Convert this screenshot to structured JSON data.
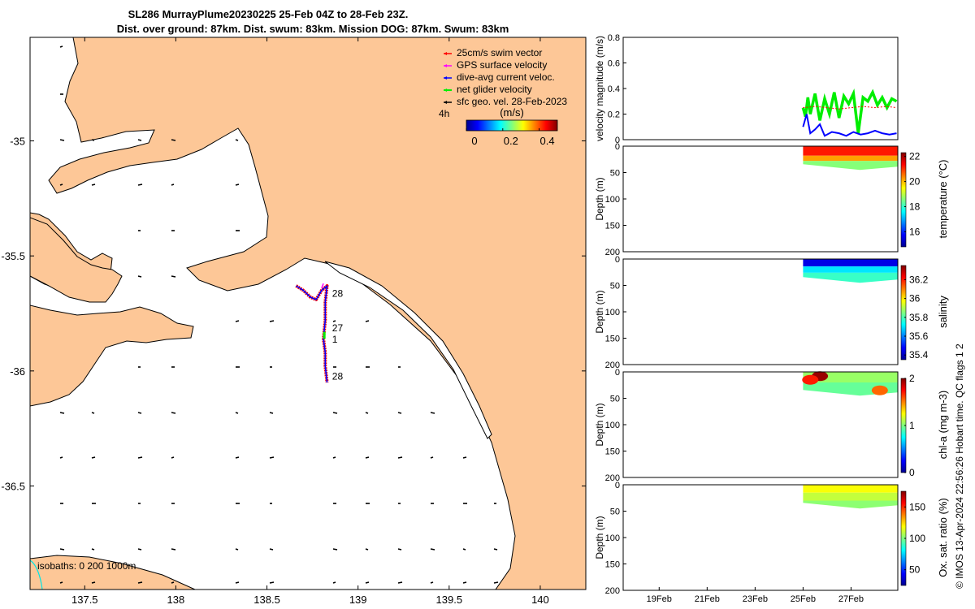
{
  "header": {
    "title_line1": "SL286 MurrayPlume20230225 25-Feb 04Z to 28-Feb 23Z.",
    "title_line2": "Dist. over ground: 87km. Dist. swum: 83km. Mission DOG: 87km. Swum: 83km"
  },
  "credit": "© IMOS 13-Apr-2024 22:56:26 Hobart time. QC flags 1  2",
  "colors": {
    "land": "#fdc797",
    "swim_vector": "#ff0000",
    "gps_surface": "#ff00ff",
    "dive_avg_current": "#0000ff",
    "net_glider": "#00ee00",
    "sfc_geo": "#000000",
    "isobath": "#00e5e5"
  },
  "chart_data": [
    {
      "id": "map",
      "type": "scatter",
      "title": "",
      "xlabel": "",
      "ylabel": "",
      "xlim": [
        137.2,
        140.25
      ],
      "ylim": [
        -36.95,
        -34.55
      ],
      "x_ticks": [
        137.5,
        138,
        138.5,
        139,
        139.5,
        140
      ],
      "x_tick_labels": [
        "137.5",
        "138",
        "138.5",
        "139",
        "139.5",
        "140"
      ],
      "y_ticks": [
        -35,
        -35.5,
        -36,
        -36.5
      ],
      "y_tick_labels": [
        "-35",
        "-35.5",
        "-36",
        "-36.5"
      ],
      "legend": {
        "position": "top-right",
        "entries": [
          {
            "label": "25cm/s swim vector",
            "color_key": "swim_vector"
          },
          {
            "label": "GPS surface velocity",
            "color_key": "gps_surface"
          },
          {
            "label": "dive-avg current veloc.",
            "color_key": "dive_avg_current"
          },
          {
            "label": "net glider velocity",
            "color_key": "net_glider"
          },
          {
            "label": "sfc geo. vel. 28-Feb-2023",
            "color_key": "sfc_geo"
          }
        ]
      },
      "colorbar": {
        "label": "(m/s)",
        "ticks": [
          0,
          0.2,
          0.4
        ],
        "tick_labels": [
          "0",
          "0.2",
          "0.4"
        ],
        "range": [
          0,
          0.5
        ],
        "side_label": "4h"
      },
      "isobaths_label": "isobaths: 0   200  1000m",
      "day_labels": [
        {
          "text": "28",
          "lon": 138.84,
          "lat": -35.66
        },
        {
          "text": "27",
          "lon": 138.84,
          "lat": -35.81
        },
        {
          "text": "1",
          "lon": 138.84,
          "lat": -35.86
        },
        {
          "text": "28",
          "lon": 138.84,
          "lat": -36.02
        }
      ],
      "track": [
        [
          138.66,
          -35.63
        ],
        [
          138.7,
          -35.65
        ],
        [
          138.74,
          -35.68
        ],
        [
          138.77,
          -35.69
        ],
        [
          138.8,
          -35.65
        ],
        [
          138.83,
          -35.63
        ],
        [
          138.82,
          -35.7
        ],
        [
          138.82,
          -35.78
        ],
        [
          138.81,
          -35.86
        ],
        [
          138.82,
          -35.92
        ],
        [
          138.82,
          -35.98
        ],
        [
          138.83,
          -36.05
        ]
      ],
      "sfc_vector_grid": {
        "lon_start": 137.3,
        "lon_step": 0.4,
        "lat_start": -34.6,
        "lat_step": -0.25
      }
    },
    {
      "id": "velocity",
      "type": "line",
      "ylabel": "velocity magnitude (m/s)",
      "ylim": [
        0,
        0.8
      ],
      "y_ticks": [
        0,
        0.2,
        0.4,
        0.6,
        0.8
      ],
      "y_tick_labels": [
        "0",
        "0.2",
        "0.4",
        "0.6",
        "0.8"
      ],
      "xlim": [
        17.5,
        28.95
      ],
      "series": [
        {
          "name": "net glider velocity",
          "color_key": "net_glider",
          "x": [
            25.0,
            25.1,
            25.2,
            25.3,
            25.5,
            25.7,
            25.9,
            26.1,
            26.3,
            26.5,
            26.7,
            26.9,
            27.1,
            27.3,
            27.5,
            27.7,
            27.9,
            28.1,
            28.3,
            28.5,
            28.7,
            28.9
          ],
          "values": [
            0.25,
            0.18,
            0.33,
            0.2,
            0.36,
            0.15,
            0.32,
            0.2,
            0.37,
            0.17,
            0.34,
            0.28,
            0.36,
            0.05,
            0.33,
            0.3,
            0.37,
            0.27,
            0.33,
            0.25,
            0.32,
            0.3
          ]
        },
        {
          "name": "dive-avg current veloc.",
          "color_key": "dive_avg_current",
          "x": [
            25.0,
            25.15,
            25.3,
            25.5,
            25.7,
            25.9,
            26.2,
            26.5,
            26.8,
            27.1,
            27.4,
            27.7,
            28.0,
            28.3,
            28.6,
            28.9
          ],
          "values": [
            0.1,
            0.2,
            0.05,
            0.08,
            0.12,
            0.03,
            0.06,
            0.05,
            0.03,
            0.06,
            0.04,
            0.05,
            0.07,
            0.05,
            0.04,
            0.05
          ]
        },
        {
          "name": "25cm/s swim vector",
          "color_key": "swim_vector",
          "x": [
            25.0,
            25.5,
            26.0,
            26.5,
            27.0,
            27.5,
            28.0,
            28.5,
            28.9
          ],
          "values": [
            0.25,
            0.26,
            0.25,
            0.24,
            0.25,
            0.26,
            0.25,
            0.26,
            0.25
          ]
        }
      ]
    },
    {
      "id": "temperature",
      "type": "heatmap",
      "ylabel": "Depth (m)",
      "ylim": [
        200,
        0
      ],
      "colorbar_label": "temperature (°C)",
      "colorbar_range": [
        14.8,
        22.3
      ],
      "colorbar_ticks": [
        16,
        18,
        20,
        22
      ],
      "colorbar_tick_labels": [
        "16",
        "18",
        "20",
        "22"
      ],
      "x_range": [
        25.0,
        28.95
      ],
      "depth_range": [
        0,
        45
      ],
      "layers": [
        {
          "depth_max": 18,
          "value": 21.2
        },
        {
          "depth_max": 28,
          "value": 20.2
        },
        {
          "depth_max": 45,
          "value": 18.6
        }
      ]
    },
    {
      "id": "salinity",
      "type": "heatmap",
      "ylabel": "Depth (m)",
      "ylim": [
        200,
        0
      ],
      "colorbar_label": "salinity",
      "colorbar_range": [
        35.35,
        36.35
      ],
      "colorbar_ticks": [
        35.4,
        35.6,
        35.8,
        36,
        36.2
      ],
      "colorbar_tick_labels": [
        "35.4",
        "35.6",
        "35.8",
        "36",
        "36.2"
      ],
      "x_range": [
        25.0,
        28.95
      ],
      "depth_range": [
        0,
        45
      ],
      "layers": [
        {
          "depth_max": 14,
          "value": 35.45
        },
        {
          "depth_max": 26,
          "value": 35.7
        },
        {
          "depth_max": 45,
          "value": 35.78
        }
      ]
    },
    {
      "id": "chla",
      "type": "heatmap",
      "ylabel": "Depth (m)",
      "ylim": [
        200,
        0
      ],
      "colorbar_label": "chl-a (mg m-3)",
      "colorbar_range": [
        0,
        2
      ],
      "colorbar_ticks": [
        0,
        1,
        2
      ],
      "colorbar_tick_labels": [
        "0",
        "1",
        "2"
      ],
      "x_range": [
        25.0,
        28.95
      ],
      "depth_range": [
        0,
        45
      ],
      "layers": [
        {
          "depth_max": 20,
          "value": 1.05
        },
        {
          "depth_max": 45,
          "value": 0.95
        }
      ],
      "patches": [
        {
          "x": 25.7,
          "depth": 8,
          "value": 1.95
        },
        {
          "x": 25.3,
          "depth": 15,
          "value": 1.7
        },
        {
          "x": 28.2,
          "depth": 35,
          "value": 1.55
        }
      ]
    },
    {
      "id": "oxygen",
      "type": "heatmap",
      "ylabel": "Depth (m)",
      "ylim": [
        200,
        0
      ],
      "colorbar_label": "Ox. sat. ratio (%)",
      "colorbar_range": [
        25,
        175
      ],
      "colorbar_ticks": [
        50,
        100,
        150
      ],
      "colorbar_tick_labels": [
        "50",
        "100",
        "150"
      ],
      "x_range": [
        25.0,
        28.95
      ],
      "depth_range": [
        0,
        45
      ],
      "layers": [
        {
          "depth_max": 15,
          "value": 118
        },
        {
          "depth_max": 30,
          "value": 110
        },
        {
          "depth_max": 45,
          "value": 102
        }
      ]
    },
    {
      "id": "time_axis",
      "type": "line",
      "x_ticks": [
        19,
        21,
        23,
        25,
        27
      ],
      "x_tick_labels": [
        "19Feb",
        "21Feb",
        "23Feb",
        "25Feb",
        "27Feb"
      ],
      "depth_ticks": [
        0,
        50,
        100,
        150,
        200
      ],
      "depth_tick_labels": [
        "0",
        "50",
        "100",
        "150",
        "200"
      ]
    }
  ]
}
